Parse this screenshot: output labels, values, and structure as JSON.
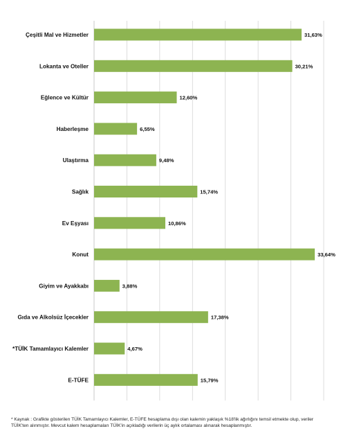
{
  "chart_data": {
    "type": "bar",
    "orientation": "horizontal",
    "categories": [
      "Çeşitli Mal ve Hizmetler",
      "Lokanta ve Oteller",
      "Eğlence ve Kültür",
      "Haberleşme",
      "Ulaştırma",
      "Sağlık",
      "Ev Eşyası",
      "Konut",
      "Giyim ve Ayakkabı",
      "Gıda ve Alkolsüz İçecekler",
      "*TÜİK Tamamlayıcı Kalemler",
      "E-TÜFE"
    ],
    "values": [
      31.63,
      30.21,
      12.6,
      6.55,
      9.48,
      15.74,
      10.86,
      33.64,
      3.88,
      17.38,
      4.67,
      15.79
    ],
    "value_labels": [
      "31,63%",
      "30,21%",
      "12,60%",
      "6,55%",
      "9,48%",
      "15,74%",
      "10,86%",
      "33,64%",
      "3,88%",
      "17,38%",
      "4,67%",
      "15,79%"
    ],
    "xlim": [
      0,
      35
    ],
    "grid": true,
    "bar_color": "#8DB451",
    "grid_color": "#d4d4d4"
  },
  "footnote": "*  Kaynak : Grafikte gösterilen TÜİK Tamamlayıcı Kalemler, E-TÜFE hesaplama dışı olan kalemin yaklaşık %18'lik ağırlığını temsil etmekte olup, veriler TÜİK'ten alınmıştır. Mevcut kalem hesaplamaları TÜİK'in açıkladığı verilerin üç aylık ortalaması alınarak hesaplanmıştır."
}
